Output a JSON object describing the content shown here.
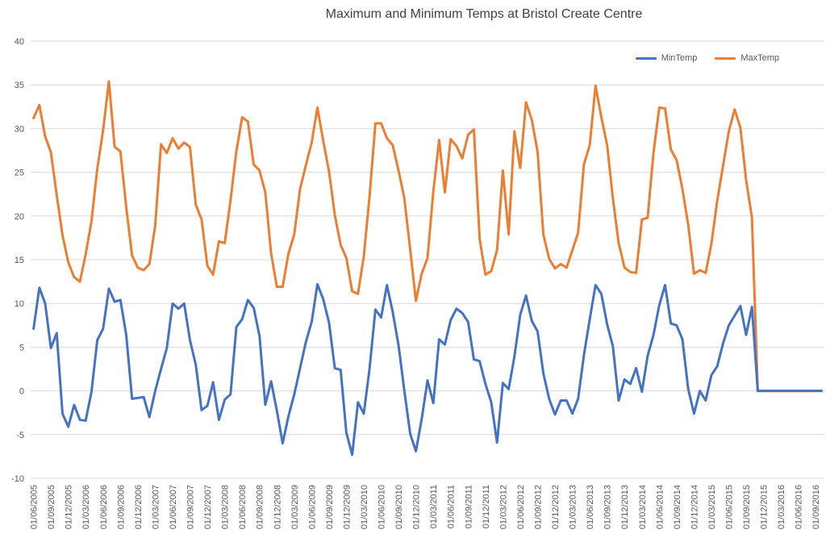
{
  "chart_data": {
    "type": "line",
    "title": "Maximum and Minimum Temps at Bristol Create Centre",
    "xlabel": "",
    "ylabel": "",
    "ylim": [
      -10,
      40
    ],
    "yticks": [
      -10,
      -5,
      0,
      5,
      10,
      15,
      20,
      25,
      30,
      35,
      40
    ],
    "grid": true,
    "legend_position": "top-right",
    "x_tick_labels": [
      "01/06/2005",
      "01/09/2005",
      "01/12/2005",
      "01/03/2006",
      "01/06/2006",
      "01/09/2006",
      "01/12/2006",
      "01/03/2007",
      "01/06/2007",
      "01/09/2007",
      "01/12/2007",
      "01/03/2008",
      "01/06/2008",
      "01/09/2008",
      "01/12/2008",
      "01/03/2009",
      "01/06/2009",
      "01/09/2009",
      "01/12/2009",
      "01/03/2010",
      "01/06/2010",
      "01/09/2010",
      "01/12/2010",
      "01/03/2011",
      "01/06/2011",
      "01/09/2011",
      "01/12/2011",
      "01/03/2012",
      "01/06/2012",
      "01/09/2012",
      "01/12/2012",
      "01/03/2013",
      "01/06/2013",
      "01/09/2013",
      "01/12/2013",
      "01/03/2014",
      "01/06/2014",
      "01/09/2014",
      "01/12/2014",
      "01/03/2015",
      "01/06/2015",
      "01/09/2015",
      "01/12/2015",
      "01/03/2016",
      "01/06/2016",
      "01/09/2016"
    ],
    "series": [
      {
        "name": "MinTemp",
        "color": "#4472C4",
        "values": [
          7.1,
          11.8,
          10.0,
          4.9,
          6.6,
          -2.6,
          -4.1,
          -1.6,
          -3.3,
          -3.4,
          -0.1,
          5.8,
          7.1,
          11.7,
          10.2,
          10.4,
          6.4,
          -0.9,
          -0.8,
          -0.7,
          -3.0,
          0.0,
          2.5,
          4.9,
          10.0,
          9.4,
          10.0,
          5.8,
          3.0,
          -2.2,
          -1.7,
          1.0,
          -3.3,
          -1.0,
          -0.4,
          7.3,
          8.2,
          10.4,
          9.5,
          6.3,
          -1.6,
          1.1,
          -2.3,
          -6.0,
          -2.9,
          -0.4,
          2.6,
          5.6,
          7.9,
          12.2,
          10.5,
          7.8,
          2.6,
          2.4,
          -4.8,
          -7.3,
          -1.3,
          -2.6,
          2.6,
          9.3,
          8.4,
          12.1,
          9.0,
          5.2,
          0.0,
          -4.9,
          -6.9,
          -3.2,
          1.2,
          -1.4,
          5.9,
          5.3,
          8.1,
          9.4,
          8.9,
          7.9,
          3.6,
          3.4,
          0.8,
          -1.3,
          -5.9,
          0.9,
          0.2,
          3.9,
          8.7,
          10.9,
          8.0,
          6.8,
          2.0,
          -0.9,
          -2.7,
          -1.1,
          -1.1,
          -2.6,
          -0.9,
          4.1,
          8.2,
          12.1,
          11.1,
          7.6,
          5.1,
          -1.1,
          1.3,
          0.8,
          2.6,
          -0.1,
          4.0,
          6.4,
          9.8,
          12.1,
          7.7,
          7.5,
          5.9,
          0.2,
          -2.6,
          0.0,
          -1.1,
          1.8,
          2.8,
          5.4,
          7.5,
          8.6,
          9.7,
          6.4,
          9.6,
          0.0,
          0.0,
          0.0,
          0.0,
          0.0,
          0.0,
          0.0,
          0.0,
          0.0,
          0.0,
          0.0,
          0.0
        ]
      },
      {
        "name": "MaxTemp",
        "color": "#ED7D31",
        "values": [
          31.2,
          32.7,
          29.1,
          27.3,
          22.4,
          17.8,
          14.7,
          13.0,
          12.5,
          15.6,
          19.4,
          25.4,
          29.8,
          35.4,
          27.9,
          27.4,
          21.0,
          15.5,
          14.1,
          13.8,
          14.5,
          18.9,
          28.2,
          27.2,
          28.9,
          27.7,
          28.4,
          27.9,
          21.3,
          19.6,
          14.3,
          13.3,
          17.1,
          16.9,
          21.8,
          27.4,
          31.3,
          30.8,
          25.9,
          25.2,
          22.7,
          15.7,
          11.9,
          11.9,
          15.7,
          17.9,
          23.1,
          25.8,
          28.4,
          32.4,
          28.6,
          25.1,
          20.1,
          16.7,
          15.2,
          11.4,
          11.1,
          15.4,
          22.3,
          30.6,
          30.6,
          28.9,
          28.1,
          25.2,
          22.0,
          16.2,
          10.3,
          13.4,
          15.2,
          22.8,
          28.7,
          22.7,
          28.8,
          28.0,
          26.6,
          29.3,
          29.9,
          17.4,
          13.3,
          13.7,
          16.1,
          25.2,
          17.9,
          29.7,
          25.5,
          33.0,
          31.0,
          27.3,
          17.9,
          15.1,
          14.0,
          14.5,
          14.1,
          16.1,
          18.1,
          25.9,
          28.1,
          34.9,
          31.3,
          28.1,
          22.0,
          16.9,
          14.1,
          13.6,
          13.5,
          19.6,
          19.8,
          27.2,
          32.4,
          32.3,
          27.6,
          26.4,
          23.1,
          19.0,
          13.4,
          13.8,
          13.5,
          16.8,
          21.7,
          25.7,
          29.7,
          32.2,
          30.1,
          24.1,
          19.8,
          0.0,
          0.0,
          0.0,
          0.0,
          0.0,
          0.0,
          0.0,
          0.0,
          0.0,
          0.0,
          0.0,
          0.0
        ]
      }
    ]
  }
}
